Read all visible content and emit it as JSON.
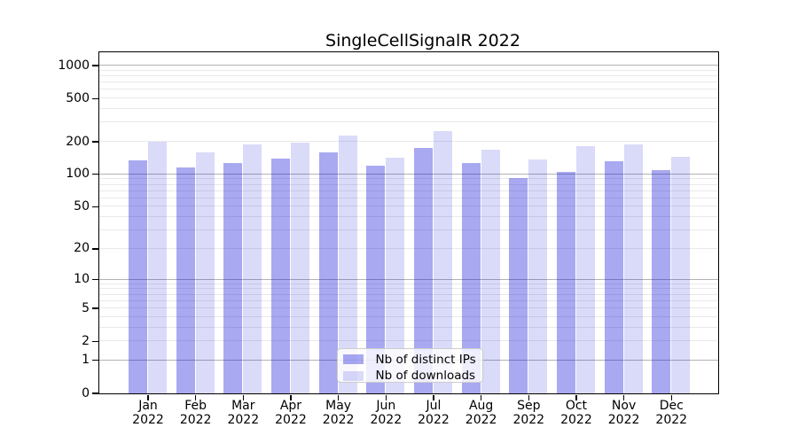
{
  "title": "SingleCellSignalR 2022",
  "chart_data": {
    "type": "bar",
    "title": "SingleCellSignalR 2022",
    "categories": [
      "Jan",
      "Feb",
      "Mar",
      "Apr",
      "May",
      "Jun",
      "Jul",
      "Aug",
      "Sep",
      "Oct",
      "Nov",
      "Dec"
    ],
    "year_label": "2022",
    "series": [
      {
        "name": "Nb of distinct IPs",
        "color": "rgba(10,10,216,0.35)",
        "values": [
          133,
          114,
          127,
          140,
          157,
          120,
          173,
          126,
          91,
          105,
          130,
          108
        ]
      },
      {
        "name": "Nb of downloads",
        "color": "rgba(10,10,216,0.148)",
        "values": [
          197,
          158,
          188,
          194,
          227,
          142,
          249,
          168,
          137,
          180,
          186,
          145
        ]
      }
    ],
    "yscale": "log1p",
    "ylim": [
      0,
      1000
    ],
    "y_ticks": [
      1000,
      500,
      200,
      100,
      50,
      20,
      10,
      5,
      2,
      1,
      0
    ],
    "y_major_grid": [
      1,
      10,
      100,
      1000
    ],
    "y_minor_grid": [
      2,
      3,
      4,
      5,
      6,
      7,
      8,
      9,
      20,
      30,
      40,
      50,
      60,
      70,
      80,
      90,
      200,
      300,
      400,
      500,
      600,
      700,
      800,
      900
    ],
    "grid": "both",
    "legend_position": "lower center"
  },
  "colors": {
    "bar_distinct_ips": "rgba(10,10,216,0.35)",
    "bar_downloads": "rgba(10,10,216,0.148)",
    "grid_major": "#b2b2b2",
    "grid_minor": "#e9e9e9",
    "spine": "#000000",
    "background": "#ffffff"
  }
}
